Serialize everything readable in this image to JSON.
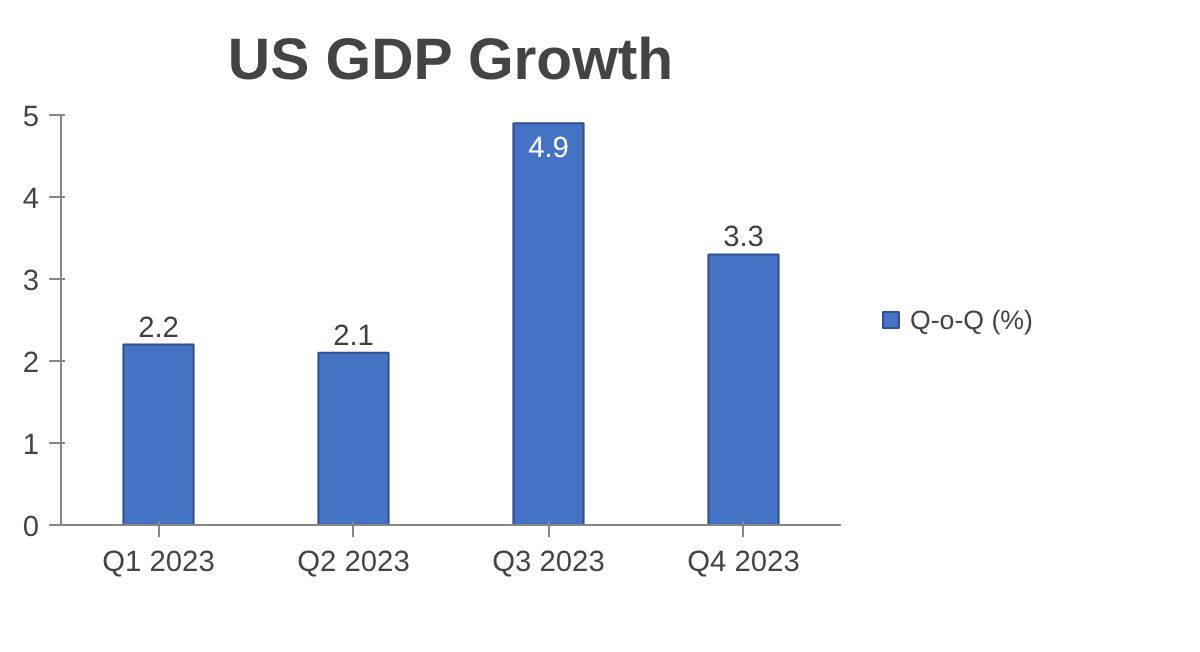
{
  "chart_data": {
    "type": "bar",
    "title": "US GDP Growth",
    "categories": [
      "Q1 2023",
      "Q2 2023",
      "Q3 2023",
      "Q4 2023"
    ],
    "series": [
      {
        "name": "Q-o-Q (%)",
        "color": "#4472c4",
        "values": [
          2.2,
          2.1,
          4.9,
          3.3
        ]
      }
    ],
    "ylim": [
      0,
      5
    ],
    "yticks": [
      0,
      1,
      2,
      3,
      4,
      5
    ],
    "grid": false,
    "legend": "right",
    "data_labels": true
  }
}
